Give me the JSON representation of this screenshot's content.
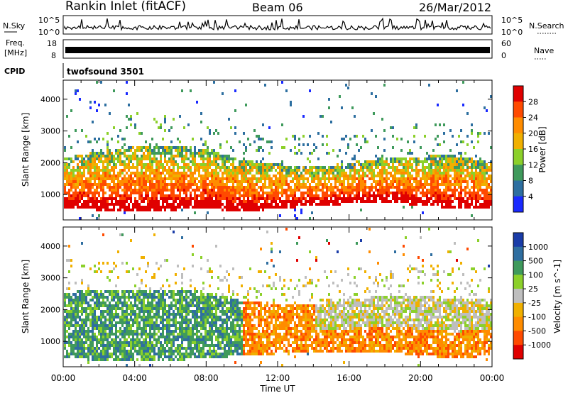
{
  "header": {
    "station": "Rankin Inlet (fitACF)",
    "beam": "Beam 06",
    "date": "26/Mar/2012"
  },
  "strips": {
    "nsky_label": "N.Sky",
    "nsky_ticks": [
      "10^5",
      "10^0"
    ],
    "nsearch_label": "N.Search",
    "freq_label_1": "Freq.",
    "freq_label_2": "[MHz]",
    "freq_ticks": [
      "18",
      "8"
    ],
    "nave_ticks": [
      "60",
      "0"
    ],
    "nave_label": "Nave",
    "cpid_label": "CPID",
    "cpid_value": "twofsound 3501"
  },
  "chart_data": [
    {
      "type": "heatmap",
      "panel": "power",
      "ylabel": "Slant Range [km]",
      "y_ticks": [
        1000,
        2000,
        3000,
        4000
      ],
      "ylim": [
        200,
        4600
      ],
      "x_ticks": [
        "00:00",
        "04:00",
        "08:00",
        "12:00",
        "16:00",
        "20:00",
        "00:00"
      ],
      "xlim_hours": [
        0,
        24
      ],
      "colorbar": {
        "label": "Power [dB]",
        "ticks": [
          "28",
          "24",
          "20",
          "16",
          "12",
          "8",
          "4"
        ],
        "colors": [
          "#e00000",
          "#ff4a00",
          "#ff8c00",
          "#f0b000",
          "#8cd02a",
          "#3f9a5c",
          "#2d6fa0",
          "#1a2aff"
        ]
      },
      "echo_band_km": [
        {
          "hour": 0,
          "lower": 600,
          "upper": 2200
        },
        {
          "hour": 4,
          "lower": 500,
          "upper": 2600
        },
        {
          "hour": 8,
          "lower": 600,
          "upper": 2500
        },
        {
          "hour": 10,
          "lower": 500,
          "upper": 2100
        },
        {
          "hour": 14,
          "lower": 700,
          "upper": 1900
        },
        {
          "hour": 18,
          "lower": 800,
          "upper": 2200
        },
        {
          "hour": 22,
          "lower": 600,
          "upper": 2300
        },
        {
          "hour": 24,
          "lower": 600,
          "upper": 2000
        }
      ]
    },
    {
      "type": "heatmap",
      "panel": "velocity",
      "ylabel": "Slant Range [km]",
      "xlabel": "Time UT",
      "y_ticks": [
        1000,
        2000,
        3000,
        4000
      ],
      "ylim": [
        200,
        4600
      ],
      "x_ticks": [
        "00:00",
        "04:00",
        "08:00",
        "12:00",
        "16:00",
        "20:00",
        "00:00"
      ],
      "xlim_hours": [
        0,
        24
      ],
      "colorbar": {
        "label": "Velocity [m s^-1]",
        "ticks": [
          "1000",
          "500",
          "100",
          "25",
          "-25",
          "-100",
          "-500",
          "-1000"
        ],
        "colors": [
          "#1a3ca8",
          "#2f6ea0",
          "#3f9a5c",
          "#8cd02a",
          "#bebebe",
          "#f0b000",
          "#ff8c00",
          "#ff4a00",
          "#e00000"
        ]
      },
      "echo_band_km": [
        {
          "hour": 0,
          "lower": 500,
          "upper": 2600
        },
        {
          "hour": 4,
          "lower": 400,
          "upper": 2700
        },
        {
          "hour": 8,
          "lower": 500,
          "upper": 2600
        },
        {
          "hour": 10,
          "lower": 600,
          "upper": 2300
        },
        {
          "hour": 14,
          "lower": 700,
          "upper": 2200
        },
        {
          "hour": 18,
          "lower": 700,
          "upper": 2500
        },
        {
          "hour": 22,
          "lower": 500,
          "upper": 2400
        },
        {
          "hour": 24,
          "lower": 600,
          "upper": 2400
        }
      ]
    }
  ]
}
